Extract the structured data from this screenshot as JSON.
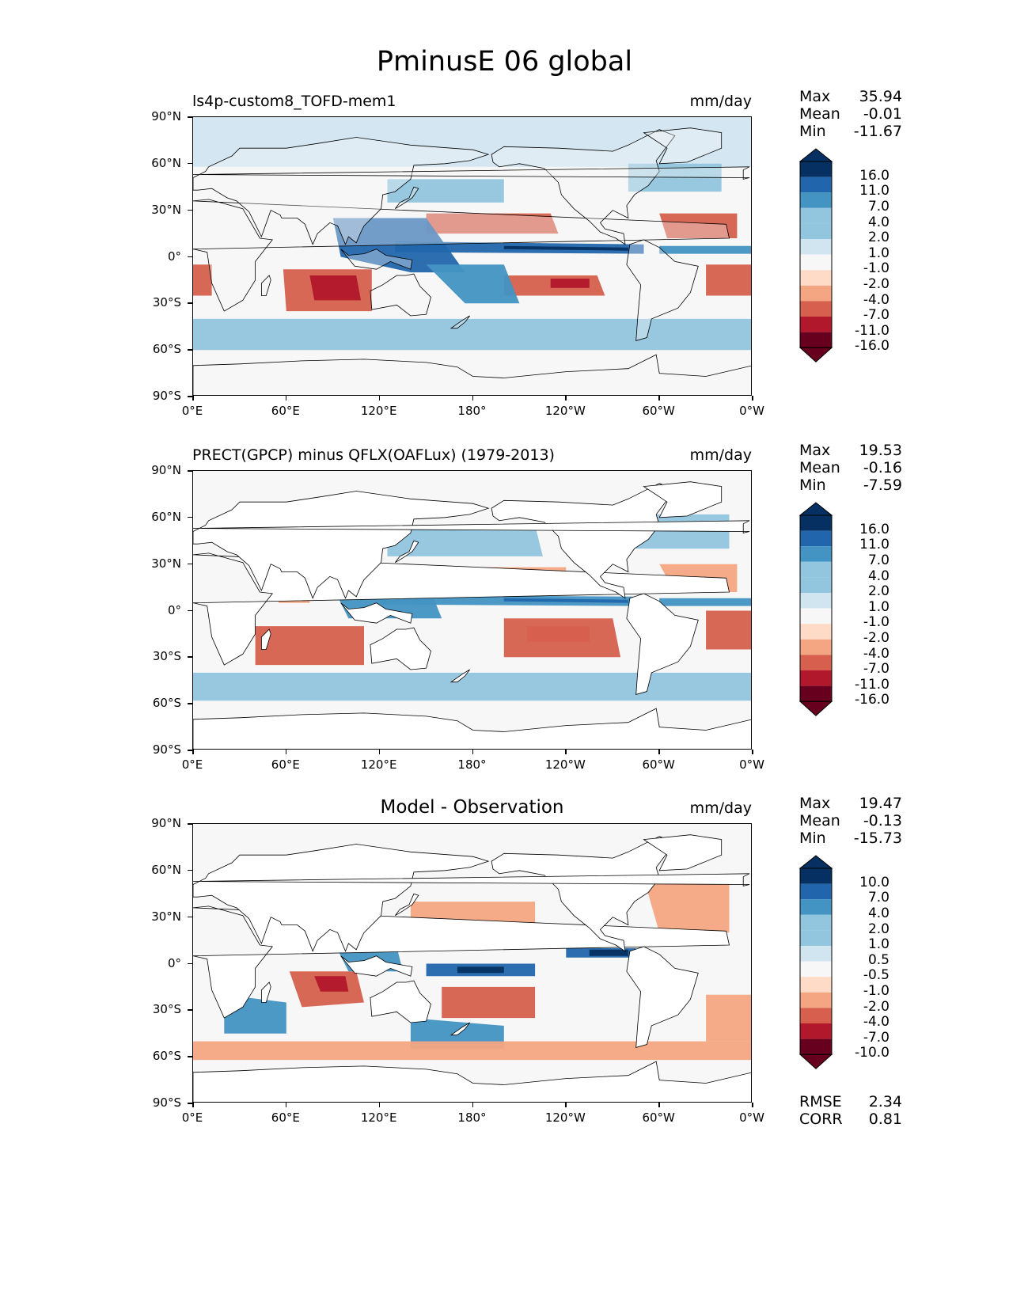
{
  "title": "PminusE 06 global",
  "colors": {
    "dark_blue": "#053061",
    "blue": "#2166ac",
    "mid_blue": "#4393c3",
    "light_blue": "#92c5de",
    "pale_blue": "#d1e5f0",
    "near_white": "#f7f7f7",
    "pale_red": "#fddbc7",
    "light_red": "#f4a582",
    "red": "#d6604d",
    "dark_red": "#b2182b",
    "deep_red": "#67001f",
    "land": "#ffffff"
  },
  "axes": {
    "y_ticks": [
      "90°N",
      "60°N",
      "30°N",
      "0°",
      "30°S",
      "60°S",
      "90°S"
    ],
    "x_ticks": [
      "0°E",
      "60°E",
      "120°E",
      "180°",
      "120°W",
      "60°W",
      "0°W"
    ]
  },
  "panels": [
    {
      "title": "ls4p-custom8_TOFD-mem1",
      "units": "mm/day",
      "stats": [
        {
          "label": "Max",
          "value": "35.94"
        },
        {
          "label": "Mean",
          "value": "-0.01"
        },
        {
          "label": "Min",
          "value": "-11.67"
        }
      ],
      "colorbar": [
        "16.0",
        "11.0",
        "7.0",
        "4.0",
        "2.0",
        "1.0",
        "-1.0",
        "-2.0",
        "-4.0",
        "-7.0",
        "-11.0",
        "-16.0"
      ]
    },
    {
      "title": "PRECT(GPCP) minus QFLX(OAFLux) (1979-2013)",
      "units": "mm/day",
      "stats": [
        {
          "label": "Max",
          "value": "19.53"
        },
        {
          "label": "Mean",
          "value": "-0.16"
        },
        {
          "label": "Min",
          "value": "-7.59"
        }
      ],
      "colorbar": [
        "16.0",
        "11.0",
        "7.0",
        "4.0",
        "2.0",
        "1.0",
        "-1.0",
        "-2.0",
        "-4.0",
        "-7.0",
        "-11.0",
        "-16.0"
      ]
    },
    {
      "title": "Model - Observation",
      "units": "mm/day",
      "stats": [
        {
          "label": "Max",
          "value": "19.47"
        },
        {
          "label": "Mean",
          "value": "-0.13"
        },
        {
          "label": "Min",
          "value": "-15.73"
        }
      ],
      "colorbar": [
        "10.0",
        "7.0",
        "4.0",
        "2.0",
        "1.0",
        "0.5",
        "-0.5",
        "-1.0",
        "-2.0",
        "-4.0",
        "-7.0",
        "-10.0"
      ],
      "extra_stats": [
        {
          "label": "RMSE",
          "value": "2.34"
        },
        {
          "label": "CORR",
          "value": "0.81"
        }
      ]
    }
  ],
  "chart_data": [
    {
      "type": "heatmap",
      "title": "ls4p-custom8_TOFD-mem1",
      "units": "mm/day",
      "xlim": [
        0,
        360
      ],
      "ylim": [
        -90,
        90
      ],
      "levels": [
        -16.0,
        -11.0,
        -7.0,
        -4.0,
        -2.0,
        -1.0,
        1.0,
        2.0,
        4.0,
        7.0,
        11.0,
        16.0
      ],
      "max": 35.94,
      "mean": -0.01,
      "min": -11.67
    },
    {
      "type": "heatmap",
      "title": "PRECT(GPCP) minus QFLX(OAFLux) (1979-2013)",
      "units": "mm/day",
      "xlim": [
        0,
        360
      ],
      "ylim": [
        -90,
        90
      ],
      "levels": [
        -16.0,
        -11.0,
        -7.0,
        -4.0,
        -2.0,
        -1.0,
        1.0,
        2.0,
        4.0,
        7.0,
        11.0,
        16.0
      ],
      "max": 19.53,
      "mean": -0.16,
      "min": -7.59
    },
    {
      "type": "heatmap",
      "title": "Model - Observation",
      "units": "mm/day",
      "xlim": [
        0,
        360
      ],
      "ylim": [
        -90,
        90
      ],
      "levels": [
        -10.0,
        -7.0,
        -4.0,
        -2.0,
        -1.0,
        -0.5,
        0.5,
        1.0,
        2.0,
        4.0,
        7.0,
        10.0
      ],
      "max": 19.47,
      "mean": -0.13,
      "min": -15.73,
      "rmse": 2.34,
      "corr": 0.81
    }
  ]
}
